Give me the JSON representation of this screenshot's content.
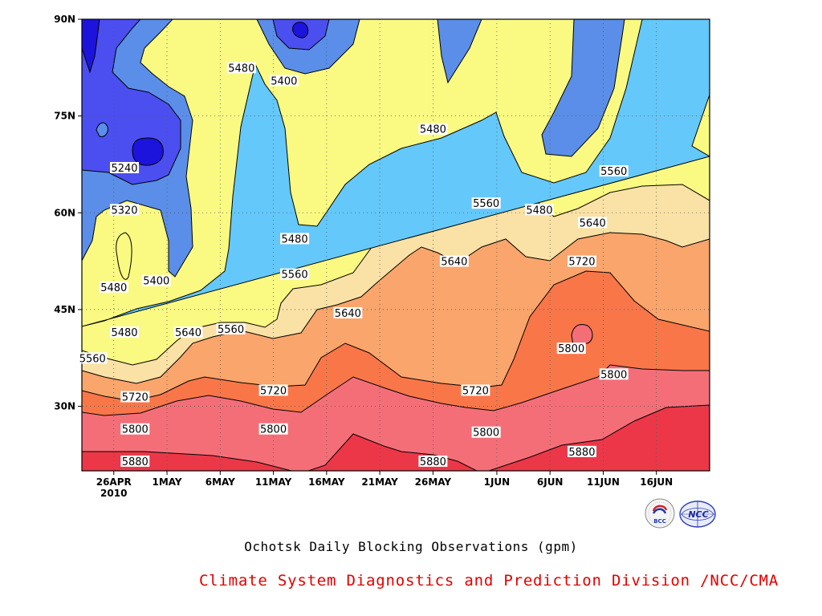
{
  "chart_data": {
    "type": "heatmap",
    "subtype": "filled contour (time-latitude Hovmoller)",
    "title": "Ochotsk Daily Blocking Observations (gpm)",
    "credit": "Climate System Diagnostics and Prediction Division /NCC/CMA",
    "x_axis": {
      "start": "2010-04-23",
      "end": "2010-06-21",
      "ticks": [
        "26APR",
        "1MAY",
        "6MAY",
        "11MAY",
        "16MAY",
        "21MAY",
        "26MAY",
        "1JUN",
        "6JUN",
        "11JUN",
        "16JUN"
      ],
      "tick_dates": [
        "2010-04-26",
        "2010-05-01",
        "2010-05-06",
        "2010-05-11",
        "2010-05-16",
        "2010-05-21",
        "2010-05-26",
        "2010-06-01",
        "2010-06-06",
        "2010-06-11",
        "2010-06-16"
      ],
      "year_label": "2010"
    },
    "y_axis": {
      "range": [
        20,
        90
      ],
      "ticks": [
        "30N",
        "45N",
        "60N",
        "75N",
        "90N"
      ],
      "tick_values": [
        30,
        45,
        60,
        75,
        90
      ]
    },
    "grid": "dotted",
    "contour_levels": [
      5240,
      5320,
      5400,
      5480,
      5560,
      5640,
      5720,
      5800,
      5880
    ],
    "color_bands": [
      {
        "below": 5240,
        "color": "#1c14dc"
      },
      {
        "from": 5240,
        "to": 5320,
        "color": "#4b4ff0"
      },
      {
        "from": 5320,
        "to": 5400,
        "color": "#5a8ee8"
      },
      {
        "from": 5400,
        "to": 5480,
        "color": "#64c8fa"
      },
      {
        "from": 5480,
        "to": 5560,
        "color": "#fafa82"
      },
      {
        "from": 5560,
        "to": 5640,
        "color": "#fae1a5"
      },
      {
        "from": 5640,
        "to": 5720,
        "color": "#f9a56b"
      },
      {
        "from": 5720,
        "to": 5800,
        "color": "#f97649"
      },
      {
        "from": 5800,
        "to": 5880,
        "color": "#f46e78"
      },
      {
        "above": 5880,
        "color": "#ec3748"
      }
    ],
    "contour_labels": [
      {
        "value": "5240",
        "date": "2010-04-27",
        "lat": 67
      },
      {
        "value": "5320",
        "date": "2010-04-27",
        "lat": 60.5
      },
      {
        "value": "5400",
        "date": "2010-04-30",
        "lat": 49.5
      },
      {
        "value": "5480",
        "date": "2010-04-26",
        "lat": 48.5
      },
      {
        "value": "5480",
        "date": "2010-04-27",
        "lat": 41.5
      },
      {
        "value": "5560",
        "date": "2010-04-24",
        "lat": 37.5
      },
      {
        "value": "5720",
        "date": "2010-04-28",
        "lat": 31.5
      },
      {
        "value": "5800",
        "date": "2010-04-28",
        "lat": 26.5
      },
      {
        "value": "5880",
        "date": "2010-04-28",
        "lat": 21.5
      },
      {
        "value": "5640",
        "date": "2010-05-03",
        "lat": 41.5
      },
      {
        "value": "5560",
        "date": "2010-05-07",
        "lat": 42
      },
      {
        "value": "5480",
        "date": "2010-05-08",
        "lat": 82.5
      },
      {
        "value": "5400",
        "date": "2010-05-12",
        "lat": 80.5
      },
      {
        "value": "5480",
        "date": "2010-05-13",
        "lat": 56
      },
      {
        "value": "5560",
        "date": "2010-05-13",
        "lat": 50.5
      },
      {
        "value": "5720",
        "date": "2010-05-11",
        "lat": 32.5
      },
      {
        "value": "5800",
        "date": "2010-05-11",
        "lat": 26.5
      },
      {
        "value": "5640",
        "date": "2010-05-18",
        "lat": 44.5
      },
      {
        "value": "5480",
        "date": "2010-05-26",
        "lat": 73
      },
      {
        "value": "5640",
        "date": "2010-05-28",
        "lat": 52.5
      },
      {
        "value": "5880",
        "date": "2010-05-26",
        "lat": 21.5
      },
      {
        "value": "5560",
        "date": "2010-05-31",
        "lat": 61.5
      },
      {
        "value": "5720",
        "date": "2010-05-30",
        "lat": 32.5
      },
      {
        "value": "5800",
        "date": "2010-05-31",
        "lat": 26
      },
      {
        "value": "5480",
        "date": "2010-06-05",
        "lat": 60.5
      },
      {
        "value": "5720",
        "date": "2010-06-09",
        "lat": 52.5
      },
      {
        "value": "5800",
        "date": "2010-06-08",
        "lat": 39
      },
      {
        "value": "5880",
        "date": "2010-06-09",
        "lat": 23
      },
      {
        "value": "5640",
        "date": "2010-06-10",
        "lat": 58.5
      },
      {
        "value": "5560",
        "date": "2010-06-12",
        "lat": 66.5
      },
      {
        "value": "5800",
        "date": "2010-06-12",
        "lat": 35
      }
    ]
  },
  "logos": {
    "bcc_text": "BCC",
    "ncc_text": "NCC"
  }
}
